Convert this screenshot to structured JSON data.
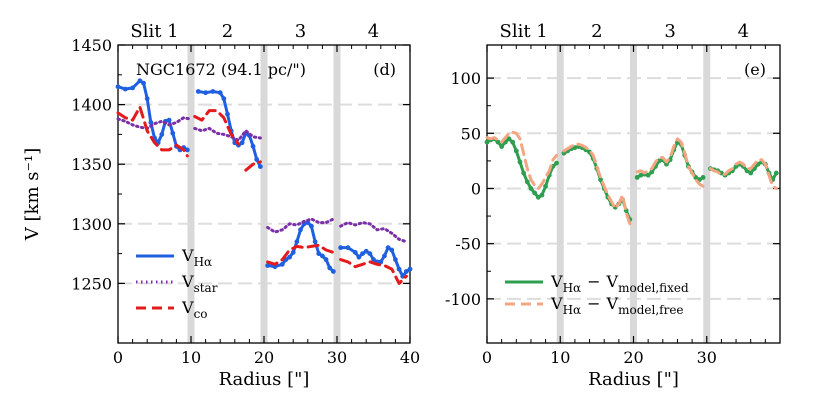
{
  "chart_data": [
    {
      "type": "line",
      "panel_label": "(d)",
      "galaxy_label": "NGC1672 (94.1 pc/\")",
      "xlabel": "Radius [\"]",
      "ylabel": "V [km s⁻¹]",
      "xlim": [
        0,
        40
      ],
      "ylim": [
        1200,
        1450
      ],
      "xticks": [
        0,
        10,
        20,
        30,
        40
      ],
      "yticks": [
        1250,
        1300,
        1350,
        1400,
        1450
      ],
      "grid_y": [
        1250,
        1300,
        1350,
        1400
      ],
      "slit_labels": [
        "Slit 1",
        "2",
        "3",
        "4"
      ],
      "slit_label_x": [
        5,
        15,
        25,
        35
      ],
      "gaps": [
        10,
        20,
        30
      ],
      "legend_position": "bottom-left",
      "series": [
        {
          "name": "VHα",
          "legend_main": "V",
          "legend_sub": "Hα",
          "color": "#1f5fe0",
          "style": "solid-dots",
          "segments": [
            {
              "x": [
                0,
                1,
                2,
                3,
                3.5,
                4,
                4.5,
                5,
                5.5,
                6,
                6.5,
                7,
                7.5,
                8,
                8.5,
                9,
                9.5
              ],
              "y": [
                1415,
                1413,
                1414,
                1420,
                1418,
                1405,
                1385,
                1372,
                1368,
                1375,
                1386,
                1387,
                1376,
                1365,
                1362,
                1364,
                1362
              ]
            },
            {
              "x": [
                11,
                12,
                13,
                14,
                14.5,
                15,
                15.5,
                16,
                16.5,
                17,
                17.5,
                18,
                18.5,
                19,
                19.5
              ],
              "y": [
                1411,
                1410,
                1411,
                1410,
                1405,
                1392,
                1378,
                1368,
                1366,
                1368,
                1376,
                1374,
                1365,
                1354,
                1348
              ]
            },
            {
              "x": [
                20.5,
                21.5,
                22.5,
                23,
                23.5,
                24,
                24.5,
                25,
                25.5,
                26,
                26.5,
                27,
                27.5,
                28,
                28.5,
                29,
                29.5
              ],
              "y": [
                1265,
                1264,
                1266,
                1270,
                1272,
                1276,
                1285,
                1295,
                1300,
                1301,
                1298,
                1285,
                1275,
                1273,
                1270,
                1263,
                1260
              ]
            },
            {
              "x": [
                30.5,
                31.5,
                32.5,
                33,
                33.5,
                34,
                34.5,
                35,
                35.5,
                36,
                36.5,
                37,
                37.5,
                38,
                38.5,
                39,
                39.5,
                40
              ],
              "y": [
                1280,
                1280,
                1276,
                1272,
                1275,
                1277,
                1275,
                1270,
                1268,
                1268,
                1273,
                1280,
                1278,
                1270,
                1262,
                1256,
                1260,
                1262
              ]
            }
          ]
        },
        {
          "name": "Vstar",
          "legend_main": "V",
          "legend_sub": "star",
          "color": "#7b2fa8",
          "style": "dotted",
          "segments": [
            {
              "x": [
                0,
                1,
                2,
                3,
                4,
                5,
                6,
                7,
                8,
                9,
                9.8
              ],
              "y": [
                1388,
                1386,
                1383,
                1381,
                1380,
                1384,
                1386,
                1383,
                1385,
                1389,
                1388
              ]
            },
            {
              "x": [
                10.5,
                11.5,
                12.5,
                13.5,
                14.5,
                15.5,
                16.5,
                17.5,
                18.5,
                19.5
              ],
              "y": [
                1380,
                1378,
                1380,
                1376,
                1375,
                1373,
                1370,
                1378,
                1373,
                1372
              ]
            },
            {
              "x": [
                20.5,
                21.5,
                22.5,
                23.5,
                24.5,
                25.5,
                26.5,
                27.5,
                28.5,
                29.5
              ],
              "y": [
                1297,
                1293,
                1295,
                1300,
                1299,
                1302,
                1304,
                1301,
                1301,
                1304
              ]
            },
            {
              "x": [
                30.5,
                31.5,
                32.5,
                33.5,
                34.5,
                35.5,
                36.5,
                37.5,
                38.5,
                39.5
              ],
              "y": [
                1298,
                1301,
                1299,
                1301,
                1300,
                1295,
                1296,
                1292,
                1287,
                1285
              ]
            }
          ]
        },
        {
          "name": "VCO",
          "legend_main": "V",
          "legend_sub": "co",
          "color": "#e41a1c",
          "style": "dashed",
          "segments": [
            {
              "x": [
                0,
                1,
                2,
                3,
                4,
                5,
                6,
                7,
                8,
                9,
                9.5
              ],
              "y": [
                1393,
                1389,
                1387,
                1398,
                1378,
                1368,
                1362,
                1362,
                1366,
                1362,
                1357
              ]
            },
            {
              "x": [
                10.5,
                11.5,
                12.5,
                13.5,
                14.5,
                15.5,
                16.5
              ],
              "y": [
                1390,
                1387,
                1395,
                1395,
                1389,
                1375,
                1367
              ]
            },
            {
              "x": [
                17.5,
                18.5,
                19.5
              ],
              "y": [
                1345,
                1350,
                1352
              ]
            },
            {
              "x": [
                20.5,
                21.5,
                22.5,
                23.5,
                24.5,
                25.5,
                26.5,
                27.5,
                28.5,
                29.5
              ],
              "y": [
                1268,
                1266,
                1270,
                1278,
                1281,
                1280,
                1281,
                1282,
                1278,
                1276
              ]
            },
            {
              "x": [
                30.5,
                31.5,
                32.5,
                33.5,
                34.5,
                35.5,
                36.5,
                37.5,
                38.5,
                39.5
              ],
              "y": [
                1270,
                1268,
                1264,
                1266,
                1268,
                1266,
                1265,
                1262,
                1250,
                1256
              ]
            }
          ]
        }
      ]
    },
    {
      "type": "line",
      "panel_label": "(e)",
      "xlabel": "Radius [\"]",
      "xlim": [
        0,
        40
      ],
      "ylim": [
        -140,
        130
      ],
      "xticks": [
        0,
        10,
        20,
        30
      ],
      "yticks": [
        -100,
        -50,
        0,
        50,
        100
      ],
      "grid_y": [
        -100,
        -50,
        0,
        50,
        100
      ],
      "slit_labels": [
        "Slit 1",
        "2",
        "3",
        "4"
      ],
      "slit_label_x": [
        5,
        15,
        25,
        35
      ],
      "gaps": [
        10,
        20,
        30
      ],
      "legend_position": "bottom-left",
      "series": [
        {
          "name": "VHα − Vmodel,fixed",
          "legend_main": "V",
          "legend_sub": "Hα",
          "legend_minus": "−",
          "legend_main2": "V",
          "legend_sub2": "model,fixed",
          "color": "#2e9e4f",
          "style": "solid-dots",
          "segments": [
            {
              "x": [
                0,
                0.5,
                1,
                1.5,
                2,
                2.5,
                3,
                3.5,
                4,
                4.5,
                5,
                5.5,
                6,
                6.5,
                7,
                7.5,
                8,
                8.5,
                9,
                9.5
              ],
              "y": [
                42,
                44,
                45,
                42,
                38,
                42,
                45,
                42,
                34,
                24,
                14,
                6,
                0,
                -4,
                -8,
                -6,
                2,
                12,
                20,
                23
              ]
            },
            {
              "x": [
                10.5,
                11,
                11.5,
                12,
                12.5,
                13,
                13.5,
                14,
                14.5,
                15,
                15.5,
                16,
                16.5,
                17,
                17.5,
                18,
                18.5,
                19,
                19.5
              ],
              "y": [
                32,
                34,
                36,
                37,
                38,
                37,
                35,
                33,
                27,
                18,
                8,
                0,
                -8,
                -14,
                -17,
                -14,
                -10,
                -20,
                -28
              ]
            },
            {
              "x": [
                20.5,
                21,
                21.5,
                22,
                22.5,
                23,
                23.5,
                24,
                24.5,
                25,
                25.5,
                26,
                26.5,
                27,
                27.5,
                28,
                28.5,
                29,
                29.5
              ],
              "y": [
                10,
                12,
                13,
                12,
                15,
                20,
                25,
                26,
                22,
                26,
                35,
                42,
                40,
                30,
                20,
                15,
                10,
                8,
                10
              ]
            },
            {
              "x": [
                30.5,
                31,
                31.5,
                32,
                32.5,
                33,
                33.5,
                34,
                34.5,
                35,
                35.5,
                36,
                36.5,
                37,
                37.5,
                38,
                38.5,
                39,
                39.5
              ],
              "y": [
                18,
                17,
                16,
                14,
                12,
                14,
                16,
                20,
                22,
                20,
                16,
                14,
                18,
                22,
                24,
                22,
                14,
                8,
                14
              ]
            }
          ]
        },
        {
          "name": "VHα − Vmodel,free",
          "legend_main": "V",
          "legend_sub": "Hα",
          "legend_minus": "−",
          "legend_main2": "V",
          "legend_sub2": "model,free",
          "color": "#f4a582",
          "style": "dashed",
          "segments": [
            {
              "x": [
                0,
                0.5,
                1,
                1.5,
                2,
                2.5,
                3,
                3.5,
                4,
                4.5,
                5,
                5.5,
                6,
                6.5,
                7,
                7.5,
                8,
                8.5,
                9,
                9.5
              ],
              "y": [
                46,
                45,
                46,
                44,
                42,
                46,
                50,
                51,
                50,
                45,
                32,
                18,
                8,
                3,
                0,
                4,
                10,
                16,
                26,
                30
              ]
            },
            {
              "x": [
                10.5,
                11,
                11.5,
                12,
                12.5,
                13,
                13.5,
                14,
                14.5,
                15,
                15.5,
                16,
                16.5,
                17,
                17.5,
                18,
                18.5,
                19,
                19.5
              ],
              "y": [
                34,
                36,
                38,
                40,
                40,
                39,
                37,
                35,
                30,
                20,
                10,
                2,
                -6,
                -12,
                -18,
                -14,
                -6,
                -22,
                -32
              ]
            },
            {
              "x": [
                20.5,
                21,
                21.5,
                22,
                22.5,
                23,
                23.5,
                24,
                24.5,
                25,
                25.5,
                26,
                26.5,
                27,
                27.5,
                28,
                28.5,
                29,
                29.5
              ],
              "y": [
                15,
                16,
                14,
                16,
                18,
                24,
                28,
                28,
                24,
                28,
                38,
                45,
                42,
                32,
                20,
                14,
                8,
                4,
                2
              ]
            },
            {
              "x": [
                30.5,
                31,
                31.5,
                32,
                32.5,
                33,
                33.5,
                34,
                34.5,
                35,
                35.5,
                36,
                36.5,
                37,
                37.5,
                38,
                38.5,
                39,
                39.5
              ],
              "y": [
                18,
                16,
                15,
                12,
                13,
                16,
                18,
                22,
                24,
                22,
                18,
                18,
                22,
                26,
                26,
                22,
                12,
                2,
                0
              ]
            }
          ]
        }
      ]
    }
  ]
}
